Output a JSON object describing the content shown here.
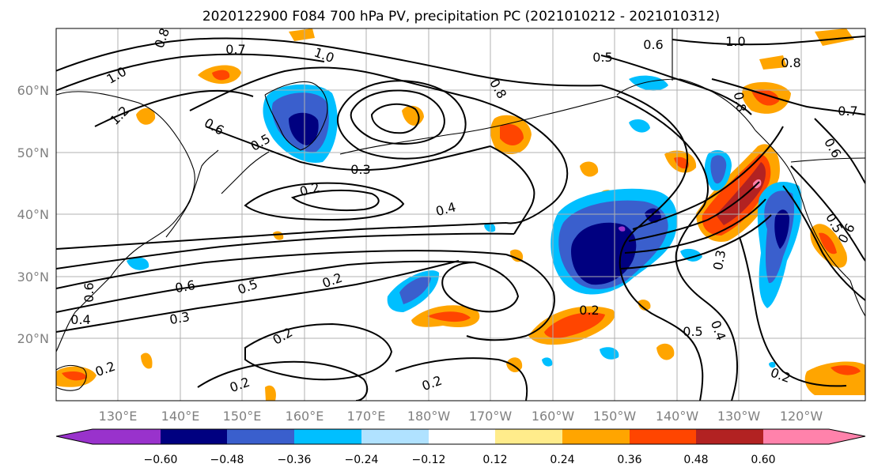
{
  "title": "2020122900 F084 700 hPa PV, precipitation PC (2021010212 - 2021010312)",
  "map": {
    "lat_labels": [
      "20°N",
      "30°N",
      "40°N",
      "50°N",
      "60°N"
    ],
    "lon_labels": [
      "130°E",
      "140°E",
      "150°E",
      "160°E",
      "170°E",
      "180°W",
      "170°W",
      "160°W",
      "150°W",
      "140°W",
      "130°W",
      "120°W"
    ],
    "contour_labels": [
      "0.7",
      "0.8",
      "1.0",
      "1.0",
      "1.2",
      "0.6",
      "0.5",
      "0.3",
      "0.2",
      "0.4",
      "0.6",
      "0.5",
      "0.3",
      "0.2",
      "0.2",
      "0.2",
      "0.4",
      "0.2",
      "0.2",
      "0.6",
      "0.5",
      "0.8",
      "0.6",
      "1.0",
      "0.8",
      "0.8",
      "0.3",
      "0.5",
      "0.4",
      "0.7",
      "0.6",
      "0.5",
      "0.2",
      "0.6",
      "0.2"
    ]
  },
  "colorbar": {
    "ticks": [
      "−0.60",
      "−0.48",
      "−0.36",
      "−0.24",
      "−0.12",
      "0.12",
      "0.24",
      "0.36",
      "0.48",
      "0.60"
    ],
    "colors": [
      "#9932cc",
      "#000080",
      "#3a5fcd",
      "#00bfff",
      "#b0e2ff",
      "#ffffff",
      "#ffec8b",
      "#ffa500",
      "#ff4500",
      "#b22222",
      "#ff82ab"
    ]
  }
}
